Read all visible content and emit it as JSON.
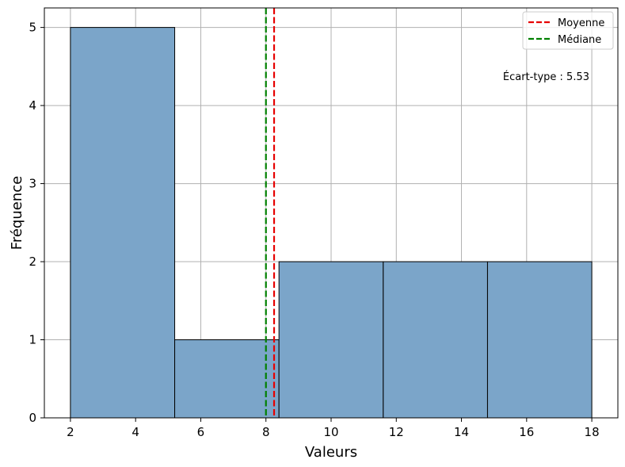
{
  "chart_data": {
    "type": "bar",
    "subtype": "histogram",
    "bins": [
      {
        "x0": 2.0,
        "x1": 5.2,
        "count": 5
      },
      {
        "x0": 5.2,
        "x1": 8.4,
        "count": 1
      },
      {
        "x0": 8.4,
        "x1": 11.6,
        "count": 2
      },
      {
        "x0": 11.6,
        "x1": 14.8,
        "count": 2
      },
      {
        "x0": 14.8,
        "x1": 18.0,
        "count": 2
      }
    ],
    "xlabel": "Valeurs",
    "ylabel": "Fréquence",
    "xlim": [
      1.2,
      18.8
    ],
    "ylim": [
      0,
      5.25
    ],
    "xticks": [
      2,
      4,
      6,
      8,
      10,
      12,
      14,
      16,
      18
    ],
    "yticks": [
      0,
      1,
      2,
      3,
      4,
      5
    ],
    "grid": true,
    "bar_color": "#7ba5c9",
    "edge_color": "#000000",
    "reference_lines": [
      {
        "name": "Moyenne",
        "value": 8.25,
        "color": "#e60000",
        "style": "dashed"
      },
      {
        "name": "Médiane",
        "value": 8.0,
        "color": "#008000",
        "style": "dashed"
      }
    ],
    "legend_position": "top-right",
    "annotation": "Écart-type : 5.53"
  }
}
